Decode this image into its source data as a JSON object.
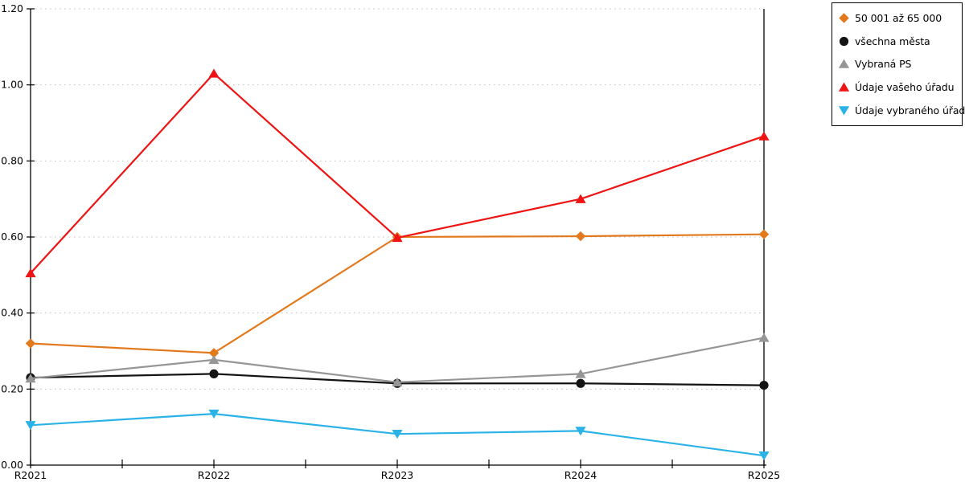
{
  "chart_data": {
    "type": "line",
    "title": "",
    "xlabel": "",
    "ylabel": "",
    "categories": [
      "R2021",
      "R2022",
      "R2023",
      "R2024",
      "R2025"
    ],
    "series": [
      {
        "name": "50 001 až 65 000",
        "marker": "diamond",
        "color": "#E2791D",
        "values": [
          0.32,
          0.295,
          0.6,
          0.602,
          0.607
        ]
      },
      {
        "name": "všechna města",
        "marker": "circle",
        "color": "#141414",
        "values": [
          0.23,
          0.24,
          0.215,
          0.215,
          0.21
        ]
      },
      {
        "name": "Vybraná PS",
        "marker": "triangle-up",
        "color": "#969696",
        "values": [
          0.228,
          0.277,
          0.218,
          0.24,
          0.335
        ]
      },
      {
        "name": "Údaje vašeho úřadu",
        "marker": "triangle-up",
        "color": "#EE1414",
        "values": [
          0.505,
          1.03,
          0.598,
          0.7,
          0.865
        ]
      },
      {
        "name": "Údaje vybraného úřadu",
        "marker": "triangle-down",
        "color": "#2BB3E8",
        "values": [
          0.105,
          0.135,
          0.082,
          0.09,
          0.025
        ]
      }
    ],
    "ylim": [
      0.0,
      1.2
    ],
    "ytick_step": 0.2,
    "ytick_labels": [
      "0.00",
      "0.20",
      "0.40",
      "0.60",
      "0.80",
      "1.00",
      "1.20"
    ],
    "grid": "horizontal-dotted",
    "grid_color": "#bdbdbd",
    "axis_color": "#000000",
    "legend_position": "outside-top-right",
    "minor_x_ticks_between_categories": true
  },
  "legend": {
    "border_color": "#000000",
    "background": "#ffffff"
  }
}
